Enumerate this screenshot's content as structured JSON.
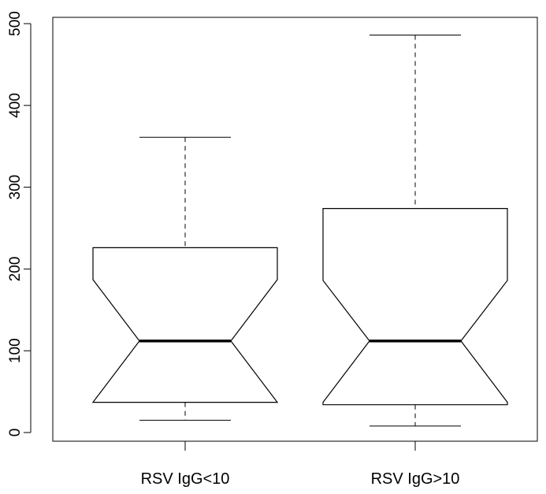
{
  "chart_data": {
    "type": "boxplot",
    "notched": true,
    "title": "",
    "xlabel": "",
    "ylabel": "",
    "ylim": [
      -10,
      510
    ],
    "y_ticks": [
      "0",
      "100",
      "200",
      "300",
      "400",
      "500"
    ],
    "categories": [
      "RSV IgG<10",
      "RSV IgG>10"
    ],
    "boxes": [
      {
        "label": "RSV IgG<10",
        "whisker_low": 15,
        "q1": 37,
        "median": 112,
        "q3": 226,
        "whisker_high": 361,
        "notch_low": 37,
        "notch_high": 187
      },
      {
        "label": "RSV IgG>10",
        "whisker_low": 8,
        "q1": 34,
        "median": 112,
        "q3": 274,
        "whisker_high": 486,
        "notch_low": 37,
        "notch_high": 186
      }
    ],
    "grid": false,
    "legend": "none",
    "colors": {
      "box_fill": "#ffffff",
      "stroke": "#000000"
    }
  }
}
